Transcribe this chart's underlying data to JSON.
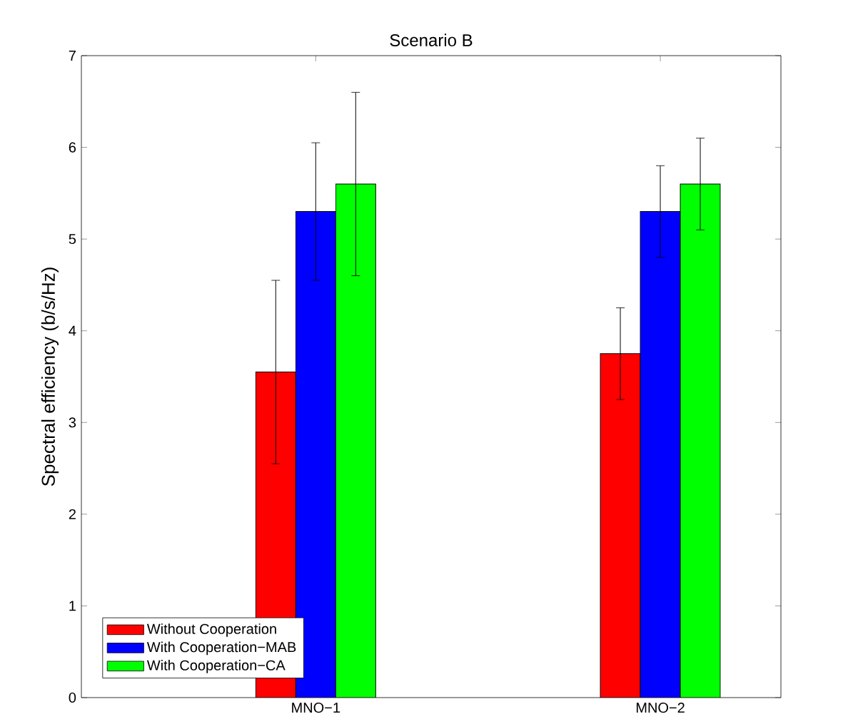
{
  "chart_data": {
    "type": "bar",
    "title": "Scenario B",
    "ylabel": "Spectral efficiency (b/s/Hz)",
    "categories": [
      "MNO−1",
      "MNO−2"
    ],
    "series": [
      {
        "name": "Without Cooperation",
        "color": "#ff0000",
        "values": [
          3.55,
          3.75
        ],
        "errors": [
          1.0,
          0.5
        ]
      },
      {
        "name": "With Cooperation−MAB",
        "color": "#0000ff",
        "values": [
          5.3,
          5.3
        ],
        "errors": [
          0.75,
          0.5
        ]
      },
      {
        "name": "With Cooperation−CA",
        "color": "#00ff00",
        "values": [
          5.6,
          5.6
        ],
        "errors": [
          1.0,
          0.5
        ]
      }
    ],
    "ylim": [
      0,
      7
    ],
    "yticks": [
      0,
      1,
      2,
      3,
      4,
      5,
      6,
      7
    ],
    "grid": false,
    "legend": "bottom left"
  }
}
